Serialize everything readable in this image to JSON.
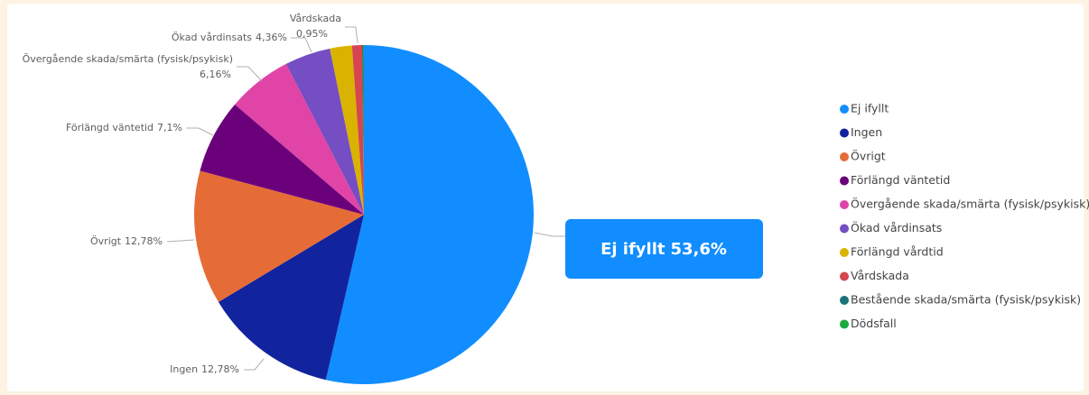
{
  "chart_data": {
    "type": "pie",
    "categories": [
      "Ej ifyllt",
      "Ingen",
      "Övrigt",
      "Förlängd väntetid",
      "Övergående skada/smärta (fysisk/psykisk)",
      "Ökad vårdinsats",
      "Förlängd vårdtid",
      "Vårdskada",
      "Bestående skada/smärta (fysisk/psykisk)",
      "Dödsfall"
    ],
    "values": [
      53.6,
      12.78,
      12.78,
      7.1,
      6.16,
      4.36,
      2.1,
      0.95,
      0.12,
      0.05
    ],
    "value_labels": [
      "53,6%",
      "12,78%",
      "12,78%",
      "7,1%",
      "6,16%",
      "4,36%",
      null,
      "0,95%",
      null,
      null
    ],
    "colors": [
      "#118dff",
      "#12239e",
      "#e66c37",
      "#6b007b",
      "#e044a7",
      "#744ec2",
      "#d9b300",
      "#d64550",
      "#197278",
      "#1aab40"
    ],
    "legend": "right"
  }
}
